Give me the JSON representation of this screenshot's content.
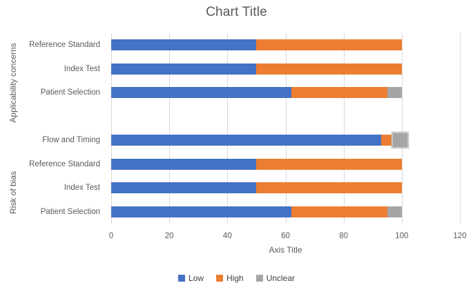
{
  "chart_title": "Chart Title",
  "axis_title": "Axis Title",
  "colors": {
    "low": "#4472C4",
    "high": "#ED7D31",
    "unclear": "#A5A5A5",
    "gridline": "#D9D9D9",
    "text": "#595959"
  },
  "legend": {
    "items": [
      {
        "label": "Low",
        "color": "#4472C4"
      },
      {
        "label": "High",
        "color": "#ED7D31"
      },
      {
        "label": "Unclear",
        "color": "#A5A5A5"
      }
    ]
  },
  "chart_data": {
    "type": "bar",
    "orientation": "horizontal",
    "stacked": true,
    "title": "Chart Title",
    "xlabel": "Axis Title",
    "ylabel": "",
    "xlim": [
      0,
      120
    ],
    "xticks": [
      0,
      20,
      40,
      60,
      80,
      100,
      120
    ],
    "grid": true,
    "legend_position": "bottom",
    "series_names": [
      "Low",
      "High",
      "Unclear"
    ],
    "groups": [
      {
        "label": "Applicability concerns",
        "categories": [
          "Reference Standard",
          "Index Test",
          "Patient Selection"
        ],
        "series": [
          {
            "name": "Low",
            "values": [
              50,
              50,
              62
            ]
          },
          {
            "name": "High",
            "values": [
              50,
              50,
              33
            ]
          },
          {
            "name": "Unclear",
            "values": [
              0,
              0,
              5
            ]
          }
        ]
      },
      {
        "label": "Risk of bias",
        "categories": [
          "Flow and Timing",
          "Reference Standard",
          "Index Test",
          "Patient Selection"
        ],
        "series": [
          {
            "name": "Low",
            "values": [
              93,
              50,
              50,
              62
            ]
          },
          {
            "name": "High",
            "values": [
              4,
              50,
              50,
              33
            ]
          },
          {
            "name": "Unclear",
            "values": [
              5,
              0,
              0,
              5
            ]
          }
        ]
      }
    ],
    "selected_point": {
      "group": "Risk of bias",
      "category": "Flow and Timing",
      "series": "Unclear"
    }
  }
}
